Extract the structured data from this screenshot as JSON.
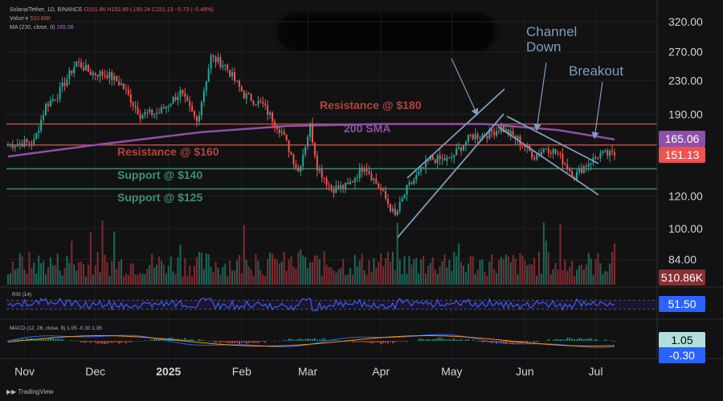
{
  "header": {
    "title_line": "Solana/Tether, 1D, BINANCE",
    "ohlc": "O151.86 H152.89 L150.24 C151.13 −0.73 (−0.48%)",
    "volume_label": "Volume",
    "volume_value": "510.86K",
    "ma_label": "MA (200, close, 0)",
    "ma_value": "165.06"
  },
  "branding": {
    "logo_text": "TradingView"
  },
  "annotations": {
    "resistance_180": "Resistance @ $180",
    "sma_200": "200 SMA",
    "resistance_160": "Resistance @ $160",
    "support_140": "Support @ $140",
    "support_125": "Support @ $125",
    "channel_down": "Channel\nDown",
    "breakout": "Breakout"
  },
  "colors": {
    "background": "#121212",
    "up": "#26a69a",
    "down": "#ef5350",
    "sma": "#8e4fa8",
    "resistance_line": "#c0504d",
    "support_line": "#3e8e76",
    "annotation_blue": "#7e9cc0",
    "rsi_line": "#3c5fe8",
    "macd_line": "#2962ff",
    "signal_line": "#ff9800"
  },
  "chart_data": [
    {
      "type": "candlestick",
      "title": "Solana/Tether, 1D, BINANCE",
      "x_ticks": [
        "Nov",
        "Dec",
        "2025",
        "Feb",
        "Mar",
        "Apr",
        "May",
        "Jun",
        "Jul"
      ],
      "y_scale": "log",
      "y_ticks": [
        320.0,
        270.0,
        230.0,
        190.0,
        120.0,
        100.0,
        84.0
      ],
      "ylim": [
        76,
        350
      ],
      "price_labels": [
        {
          "label": "165.06",
          "value": 165.06,
          "role": "ma"
        },
        {
          "label": "151.13",
          "value": 151.13,
          "role": "last"
        }
      ],
      "levels": [
        {
          "name": "Resistance @ $180",
          "value": 180
        },
        {
          "name": "Resistance @ $160",
          "value": 160
        },
        {
          "name": "Support @ $140",
          "value": 140
        },
        {
          "name": "Support @ $125",
          "value": 125
        }
      ],
      "anchors": [
        {
          "date": "2024-10-25",
          "close": 160
        },
        {
          "date": "2024-11-05",
          "close": 163
        },
        {
          "date": "2024-11-10",
          "close": 200
        },
        {
          "date": "2024-11-15",
          "close": 212
        },
        {
          "date": "2024-11-23",
          "close": 255
        },
        {
          "date": "2024-11-29",
          "close": 240
        },
        {
          "date": "2024-12-06",
          "close": 238
        },
        {
          "date": "2024-12-12",
          "close": 225
        },
        {
          "date": "2024-12-20",
          "close": 190
        },
        {
          "date": "2024-12-28",
          "close": 192
        },
        {
          "date": "2025-01-06",
          "close": 215
        },
        {
          "date": "2025-01-13",
          "close": 182
        },
        {
          "date": "2025-01-19",
          "close": 262
        },
        {
          "date": "2025-01-25",
          "close": 250
        },
        {
          "date": "2025-02-02",
          "close": 212
        },
        {
          "date": "2025-02-10",
          "close": 200
        },
        {
          "date": "2025-02-18",
          "close": 172
        },
        {
          "date": "2025-02-25",
          "close": 138
        },
        {
          "date": "2025-03-02",
          "close": 178
        },
        {
          "date": "2025-03-05",
          "close": 142
        },
        {
          "date": "2025-03-11",
          "close": 125
        },
        {
          "date": "2025-03-18",
          "close": 127
        },
        {
          "date": "2025-03-25",
          "close": 143
        },
        {
          "date": "2025-04-01",
          "close": 124
        },
        {
          "date": "2025-04-07",
          "close": 107
        },
        {
          "date": "2025-04-12",
          "close": 125
        },
        {
          "date": "2025-04-22",
          "close": 148
        },
        {
          "date": "2025-04-30",
          "close": 147
        },
        {
          "date": "2025-05-09",
          "close": 168
        },
        {
          "date": "2025-05-16",
          "close": 170
        },
        {
          "date": "2025-05-22",
          "close": 176
        },
        {
          "date": "2025-05-29",
          "close": 165
        },
        {
          "date": "2025-06-05",
          "close": 150
        },
        {
          "date": "2025-06-10",
          "close": 158
        },
        {
          "date": "2025-06-15",
          "close": 152
        },
        {
          "date": "2025-06-22",
          "close": 134
        },
        {
          "date": "2025-06-26",
          "close": 142
        },
        {
          "date": "2025-07-03",
          "close": 152
        },
        {
          "date": "2025-07-09",
          "close": 151.13
        }
      ],
      "sma_200": [
        {
          "date": "2024-10-25",
          "value": 150
        },
        {
          "date": "2024-12-01",
          "value": 160
        },
        {
          "date": "2025-01-15",
          "value": 172
        },
        {
          "date": "2025-02-20",
          "value": 178
        },
        {
          "date": "2025-04-01",
          "value": 180
        },
        {
          "date": "2025-05-15",
          "value": 180
        },
        {
          "date": "2025-06-15",
          "value": 174
        },
        {
          "date": "2025-07-09",
          "value": 165.06
        }
      ]
    },
    {
      "type": "bar",
      "title": "Volume",
      "last_value": "510.86K"
    },
    {
      "type": "line",
      "title": "RSI (14)",
      "last_value": 51.5,
      "last_label": "51.50",
      "ylim": [
        0,
        100
      ],
      "bands": [
        30,
        70
      ]
    },
    {
      "type": "line",
      "title": "MACD (12, 26, close, 9)",
      "legend_values": [
        "1.05",
        "-0.30",
        "1.35"
      ],
      "labels": [
        {
          "label": "1.05",
          "value": 1.05,
          "role": "macd"
        },
        {
          "label": "-0.30",
          "value": -0.3,
          "role": "hist"
        }
      ]
    }
  ]
}
